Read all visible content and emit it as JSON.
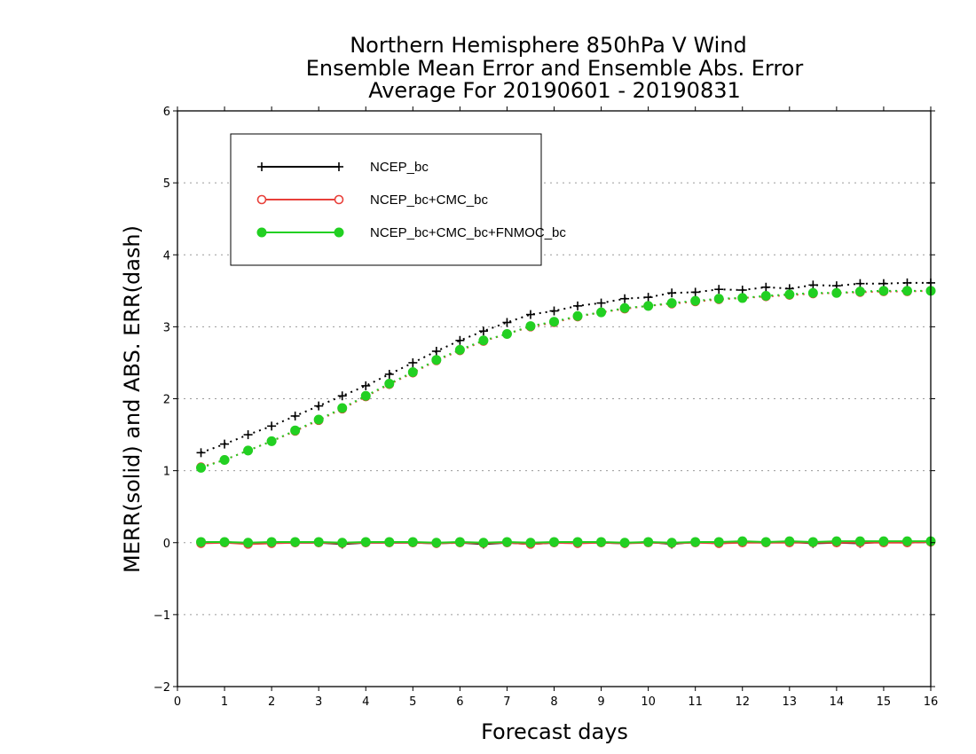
{
  "chart_data": {
    "type": "line",
    "title_lines": [
      "Northern Hemisphere 850hPa V Wind",
      "Ensemble Mean Error and Ensemble Abs. Error",
      "Average For 20190601 - 20190831"
    ],
    "xlabel": "Forecast days",
    "ylabel": "MERR(solid) and ABS. ERR(dash)",
    "xlim": [
      0,
      16
    ],
    "ylim": [
      -2,
      6
    ],
    "xticks": [
      0,
      1,
      2,
      3,
      4,
      5,
      6,
      7,
      8,
      9,
      10,
      11,
      12,
      13,
      14,
      15,
      16
    ],
    "yticks": [
      -2,
      -1,
      0,
      1,
      2,
      3,
      4,
      5,
      6
    ],
    "grid": "horizontal dotted",
    "legend_position": "top-left",
    "x": [
      0.5,
      1,
      1.5,
      2,
      2.5,
      3,
      3.5,
      4,
      4.5,
      5,
      5.5,
      6,
      6.5,
      7,
      7.5,
      8,
      8.5,
      9,
      9.5,
      10,
      10.5,
      11,
      11.5,
      12,
      12.5,
      13,
      13.5,
      14,
      14.5,
      15,
      15.5,
      16
    ],
    "series": [
      {
        "name": "NCEP_bc",
        "color": "#000000",
        "marker": "plus",
        "merr": [
          0.0,
          0.01,
          -0.01,
          0.0,
          0.0,
          0.0,
          -0.02,
          0.0,
          0.0,
          0.0,
          -0.01,
          0.0,
          -0.02,
          0.0,
          -0.02,
          0.0,
          0.0,
          0.0,
          -0.01,
          0.01,
          -0.02,
          0.01,
          -0.01,
          0.01,
          0.0,
          0.01,
          -0.01,
          0.0,
          -0.01,
          0.01,
          0.0,
          0.01
        ],
        "abs_err": [
          1.25,
          1.37,
          1.5,
          1.62,
          1.76,
          1.9,
          2.04,
          2.18,
          2.34,
          2.5,
          2.66,
          2.81,
          2.94,
          3.06,
          3.17,
          3.22,
          3.29,
          3.33,
          3.39,
          3.41,
          3.47,
          3.48,
          3.52,
          3.51,
          3.55,
          3.53,
          3.58,
          3.57,
          3.6,
          3.6,
          3.61,
          3.61
        ]
      },
      {
        "name": "NCEP_bc+CMC_bc",
        "color": "#e8403a",
        "marker": "open-circle",
        "merr": [
          -0.01,
          0.0,
          -0.02,
          -0.01,
          0.0,
          0.0,
          -0.01,
          0.0,
          0.0,
          0.0,
          -0.01,
          0.0,
          -0.01,
          0.0,
          -0.02,
          0.0,
          -0.01,
          0.0,
          -0.01,
          0.0,
          -0.01,
          0.0,
          -0.01,
          0.0,
          0.0,
          0.0,
          0.0,
          0.0,
          0.0,
          0.0,
          0.0,
          0.01
        ],
        "abs_err": [
          1.05,
          1.15,
          1.28,
          1.41,
          1.55,
          1.7,
          1.86,
          2.03,
          2.2,
          2.36,
          2.53,
          2.67,
          2.8,
          2.9,
          3.0,
          3.06,
          3.14,
          3.2,
          3.25,
          3.29,
          3.32,
          3.35,
          3.38,
          3.4,
          3.42,
          3.44,
          3.46,
          3.47,
          3.48,
          3.49,
          3.49,
          3.5
        ]
      },
      {
        "name": "NCEP_bc+CMC_bc+FNMOC_bc",
        "color": "#22d022",
        "marker": "filled-circle",
        "merr": [
          0.01,
          0.01,
          0.0,
          0.01,
          0.01,
          0.01,
          0.0,
          0.01,
          0.01,
          0.01,
          0.0,
          0.01,
          0.0,
          0.01,
          0.0,
          0.01,
          0.01,
          0.01,
          0.0,
          0.01,
          0.0,
          0.01,
          0.01,
          0.02,
          0.01,
          0.02,
          0.01,
          0.02,
          0.02,
          0.02,
          0.02,
          0.02
        ],
        "abs_err": [
          1.04,
          1.15,
          1.28,
          1.41,
          1.56,
          1.71,
          1.87,
          2.04,
          2.21,
          2.37,
          2.54,
          2.68,
          2.81,
          2.9,
          3.01,
          3.07,
          3.15,
          3.2,
          3.26,
          3.29,
          3.33,
          3.36,
          3.39,
          3.4,
          3.43,
          3.45,
          3.47,
          3.47,
          3.49,
          3.5,
          3.5,
          3.5
        ]
      }
    ]
  }
}
